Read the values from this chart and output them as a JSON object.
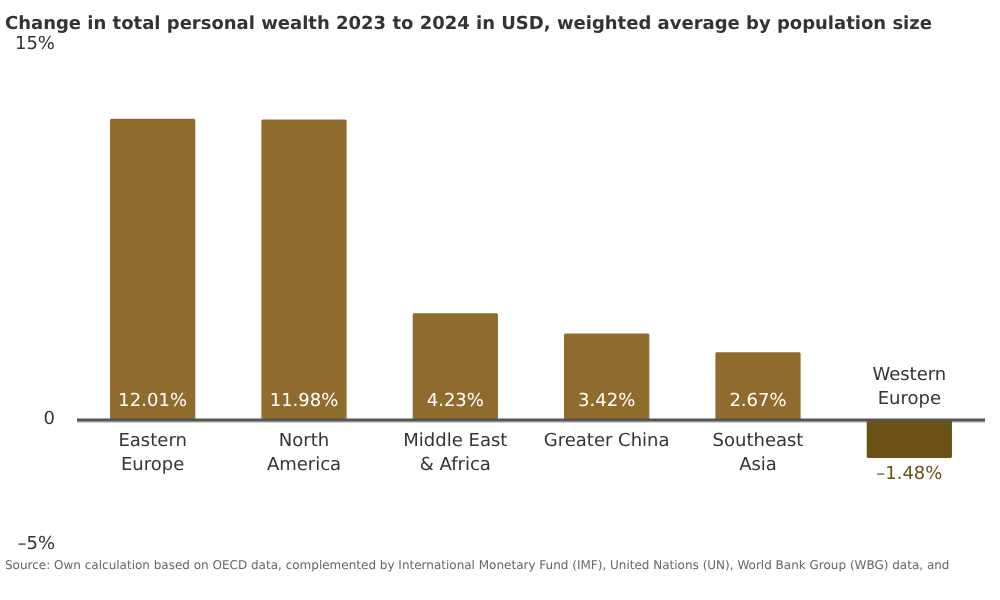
{
  "chart_data": {
    "type": "bar",
    "title": "Change in total personal wealth 2023 to 2024 in USD, weighted average by population size",
    "categories": [
      "Eastern\nEurope",
      "North\nAmerica",
      "Middle East\n& Africa",
      "Greater China",
      "Southeast\nAsia",
      "Western\nEurope"
    ],
    "values": [
      12.01,
      11.98,
      4.23,
      3.42,
      2.67,
      -1.48
    ],
    "colors": [
      "#8f6c2e",
      "#8f6c2e",
      "#8f6c2e",
      "#8f6c2e",
      "#8f6c2e",
      "#6b5318"
    ],
    "value_labels": [
      "12.01%",
      "11.98%",
      "4.23%",
      "3.42%",
      "2.67%",
      "–1.48%"
    ],
    "ylim": [
      -5,
      15
    ],
    "yticks": [
      {
        "value": 15,
        "label": "15%"
      },
      0,
      {
        "value": -5,
        "label": "–5%"
      }
    ],
    "grid": "y",
    "annotations": [
      "Source: Own calculation based on OECD data, complemented by International Monetary Fund (IMF), United Nations (UN), World Bank Group (WBG) data, and"
    ]
  }
}
